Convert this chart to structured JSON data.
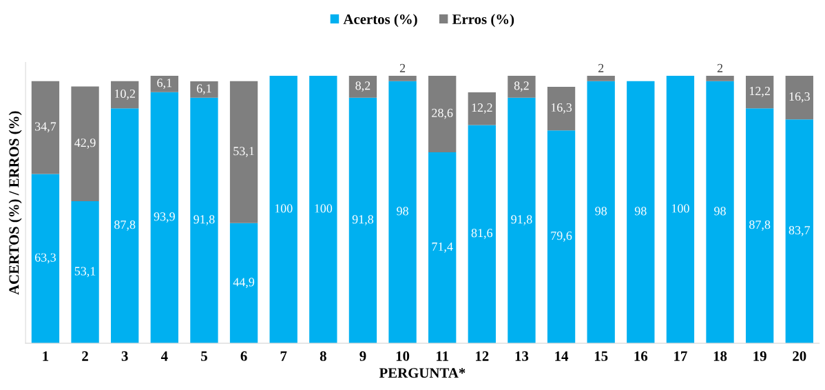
{
  "chart_data": {
    "type": "bar",
    "stacked": true,
    "xlabel": "PERGUNTA*",
    "ylabel": "ACERTOS (%) / ERROS (%)",
    "legend": "top",
    "grid": false,
    "categories": [
      "1",
      "2",
      "3",
      "4",
      "5",
      "6",
      "7",
      "8",
      "9",
      "10",
      "11",
      "12",
      "13",
      "14",
      "15",
      "16",
      "17",
      "18",
      "19",
      "20"
    ],
    "series": [
      {
        "name": "Acertos (%)",
        "color": "#00b0f0",
        "values": [
          63.3,
          53.1,
          87.8,
          93.9,
          91.8,
          44.9,
          100,
          100,
          91.8,
          98,
          71.4,
          81.6,
          91.8,
          79.6,
          98,
          98,
          100,
          98,
          87.8,
          83.7
        ],
        "value_labels": [
          "63,3",
          "53,1",
          "87,8",
          "93,9",
          "91,8",
          "44,9",
          "100",
          "100",
          "91,8",
          "98",
          "71,4",
          "81,6",
          "91,8",
          "79,6",
          "98",
          "98",
          "100",
          "98",
          "87,8",
          "83,7"
        ]
      },
      {
        "name": "Erros (%)",
        "color": "#7f7f7f",
        "values": [
          34.7,
          42.9,
          10.2,
          6.1,
          6.1,
          53.1,
          0,
          0,
          8.2,
          2,
          28.6,
          12.2,
          8.2,
          16.3,
          2,
          0,
          0,
          2,
          12.2,
          16.3
        ],
        "value_labels": [
          "34,7",
          "42,9",
          "10,2",
          "6,1",
          "6,1",
          "53,1",
          null,
          null,
          "8,2",
          "2",
          "28,6",
          "12,2",
          "8,2",
          "16,3",
          "2",
          null,
          null,
          "2",
          "12,2",
          "16,3"
        ]
      }
    ]
  }
}
